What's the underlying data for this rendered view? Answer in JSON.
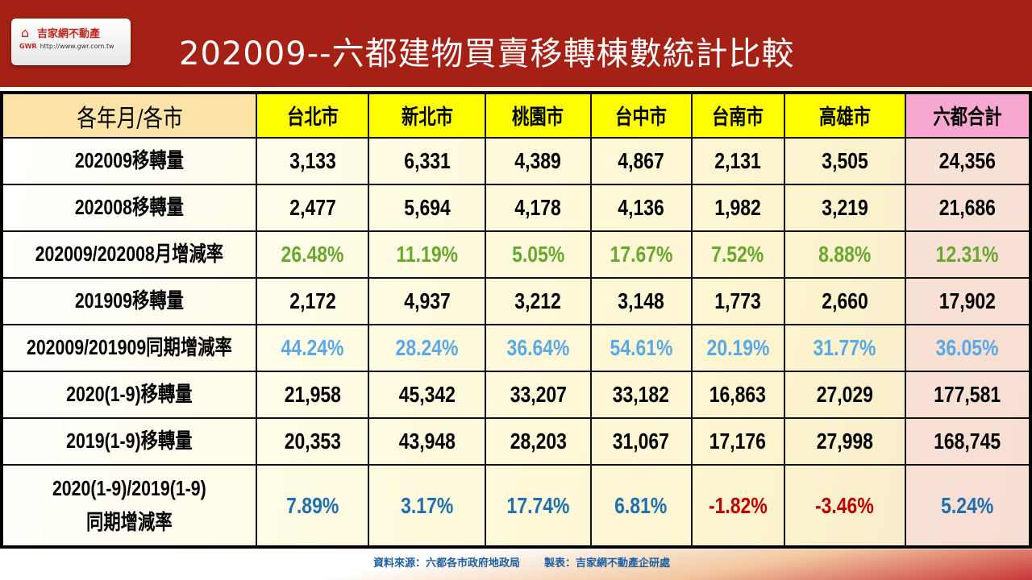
{
  "logo": {
    "name": "吉家網不動產",
    "brand": "GWR",
    "url": "http://www.gwr.com.tw"
  },
  "title": "202009--六都建物買賣移轉棟數統計比較",
  "table": {
    "headers": [
      "各年月/各市",
      "台北市",
      "新北市",
      "桃園市",
      "台中市",
      "台南市",
      "高雄市",
      "六都合計"
    ],
    "rows": [
      {
        "label": "202009移轉量",
        "values": [
          "3,133",
          "6,331",
          "4,389",
          "4,867",
          "2,131",
          "3,505",
          "24,356"
        ],
        "style": ""
      },
      {
        "label": "202008移轉量",
        "values": [
          "2,477",
          "5,694",
          "4,178",
          "4,136",
          "1,982",
          "3,219",
          "21,686"
        ],
        "style": ""
      },
      {
        "label": "202009/202008月增減率",
        "values": [
          "26.48%",
          "11.19%",
          "5.05%",
          "17.67%",
          "7.52%",
          "8.88%",
          "12.31%"
        ],
        "style": "green"
      },
      {
        "label": "201909移轉量",
        "values": [
          "2,172",
          "4,937",
          "3,212",
          "3,148",
          "1,773",
          "2,660",
          "17,902"
        ],
        "style": ""
      },
      {
        "label": "202009/201909同期增減率",
        "values": [
          "44.24%",
          "28.24%",
          "36.64%",
          "54.61%",
          "20.19%",
          "31.77%",
          "36.05%"
        ],
        "style": "blue"
      },
      {
        "label": "2020(1-9)移轉量",
        "values": [
          "21,958",
          "45,342",
          "33,207",
          "33,182",
          "16,863",
          "27,029",
          "177,581"
        ],
        "style": ""
      },
      {
        "label": "2019(1-9)移轉量",
        "values": [
          "20,353",
          "43,948",
          "28,203",
          "31,067",
          "17,176",
          "27,998",
          "168,745"
        ],
        "style": ""
      },
      {
        "label": "2020(1-9)/2019(1-9)\n同期增減率",
        "values": [
          "7.89%",
          "3.17%",
          "17.74%",
          "6.81%",
          "-1.82%",
          "-3.46%",
          "5.24%"
        ],
        "style": "dblue"
      }
    ]
  },
  "colors": {
    "header_bg": "#a52116",
    "city_header": "#ffff00",
    "total_header": "#f7a7d0",
    "positive_green": "#6aa72f",
    "positive_blue": "#5aa9e6",
    "positive_dark_blue": "#1f6fb0",
    "negative_red": "#c00000"
  },
  "footer": {
    "source": "資料來源：六都各市政府地政局",
    "maker": "製表：吉家網不動產企研處"
  }
}
